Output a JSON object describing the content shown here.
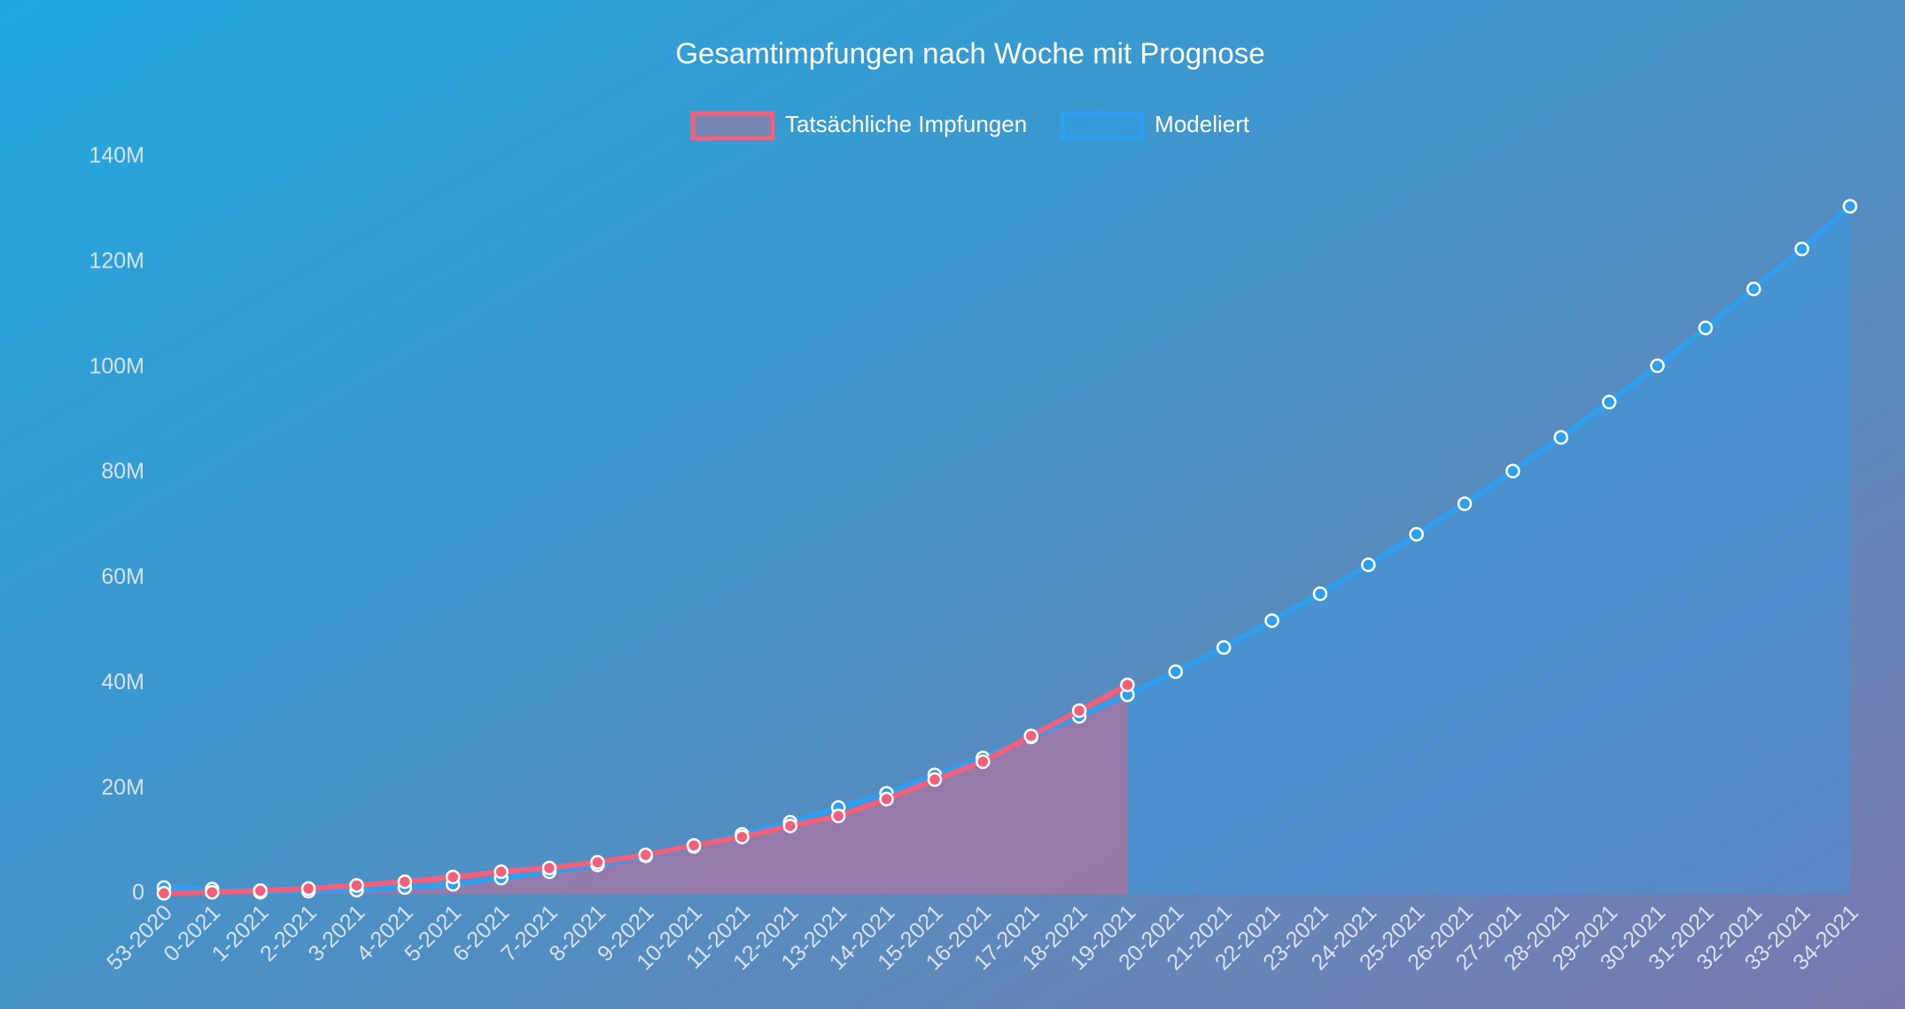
{
  "chart_data": {
    "type": "line",
    "title": "Gesamtimpfungen nach Woche mit Prognose",
    "categories": [
      "53-2020",
      "0-2021",
      "1-2021",
      "2-2021",
      "3-2021",
      "4-2021",
      "5-2021",
      "6-2021",
      "7-2021",
      "8-2021",
      "9-2021",
      "10-2021",
      "11-2021",
      "12-2021",
      "13-2021",
      "14-2021",
      "15-2021",
      "16-2021",
      "17-2021",
      "18-2021",
      "19-2021",
      "20-2021",
      "21-2021",
      "22-2021",
      "23-2021",
      "24-2021",
      "25-2021",
      "26-2021",
      "27-2021",
      "28-2021",
      "29-2021",
      "30-2021",
      "31-2021",
      "32-2021",
      "33-2021",
      "34-2021"
    ],
    "series": [
      {
        "name": "Tatsächliche Impfungen",
        "color": "#f2607c",
        "values": [
          100000,
          300000,
          600000,
          1000000,
          1600000,
          2300000,
          3200000,
          4200000,
          4900000,
          6000000,
          7400000,
          9200000,
          10800000,
          12900000,
          14800000,
          18000000,
          21700000,
          25100000,
          30000000,
          34800000,
          39700000,
          null,
          null,
          null,
          null,
          null,
          null,
          null,
          null,
          null,
          null,
          null,
          null,
          null,
          null,
          null
        ]
      },
      {
        "name": "Modeliert",
        "color": "#2f9ff0",
        "values": [
          1200000,
          900000,
          300000,
          500000,
          700000,
          1200000,
          1800000,
          3000000,
          4200000,
          5500000,
          7200000,
          9000000,
          11300000,
          13600000,
          16400000,
          19100000,
          22600000,
          25800000,
          29800000,
          33700000,
          37800000,
          42200000,
          46800000,
          51900000,
          57000000,
          62500000,
          68300000,
          74100000,
          80300000,
          86700000,
          93400000,
          100300000,
          107500000,
          114900000,
          122500000,
          130600000
        ]
      }
    ],
    "ylim": [
      0,
      140000000
    ],
    "yticks": [
      0,
      {
        "value": 20000000,
        "label": "20M"
      },
      {
        "value": 40000000,
        "label": "40M"
      },
      {
        "value": 60000000,
        "label": "60M"
      },
      {
        "value": 80000000,
        "label": "80M"
      },
      {
        "value": 100000000,
        "label": "100M"
      },
      {
        "value": 120000000,
        "label": "120M"
      },
      {
        "value": 140000000,
        "label": "140M"
      }
    ],
    "legend": "top"
  }
}
